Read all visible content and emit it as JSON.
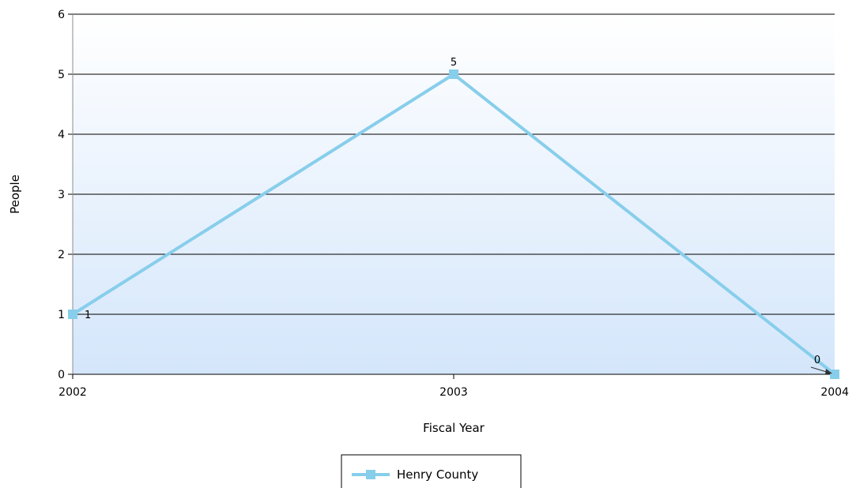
{
  "chart_data": {
    "type": "line",
    "xlabel": "Fiscal Year",
    "ylabel": "People",
    "categories": [
      "2002",
      "2003",
      "2004"
    ],
    "series": [
      {
        "name": "Henry County",
        "values": [
          1,
          5,
          0
        ],
        "color": "#87ceeb"
      }
    ],
    "data_labels": [
      "1",
      "5",
      "0"
    ],
    "ylim": [
      0,
      6
    ],
    "yticks": [
      "0",
      "1",
      "2",
      "3",
      "4",
      "5",
      "6"
    ],
    "grid": true,
    "legend_position": "bottom-center",
    "background_gradient": [
      "#ffffff",
      "#d4e6fb"
    ],
    "gridline_color": "#000000"
  }
}
